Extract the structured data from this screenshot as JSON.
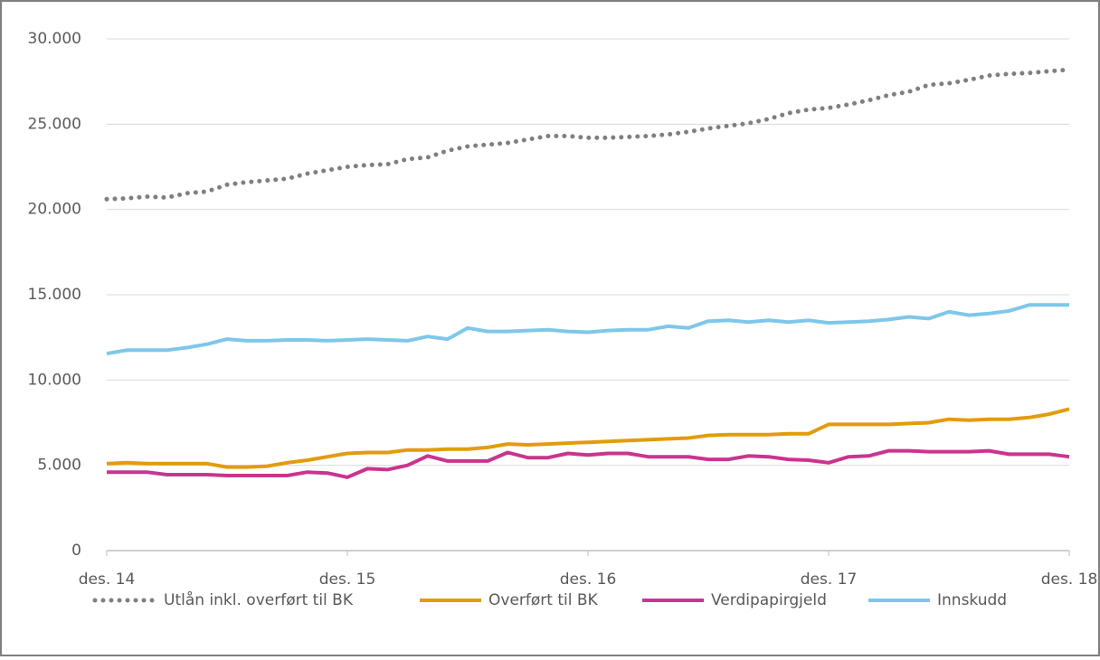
{
  "chart_data": {
    "type": "line",
    "categories": [
      "des. 14",
      null,
      null,
      null,
      null,
      null,
      null,
      null,
      null,
      null,
      null,
      null,
      "des. 15",
      null,
      null,
      null,
      null,
      null,
      null,
      null,
      null,
      null,
      null,
      null,
      "des. 16",
      null,
      null,
      null,
      null,
      null,
      null,
      null,
      null,
      null,
      null,
      null,
      "des. 17",
      null,
      null,
      null,
      null,
      null,
      null,
      null,
      null,
      null,
      null,
      null,
      "des. 18"
    ],
    "ylim": [
      0,
      30000
    ],
    "yticks": [
      0,
      {
        "value": 5000,
        "label": "5.000"
      },
      {
        "value": 10000,
        "label": "10.000"
      },
      {
        "value": 15000,
        "label": "15.000"
      },
      {
        "value": 20000,
        "label": "20.000"
      },
      {
        "value": 25000,
        "label": "25.000"
      },
      {
        "value": 30000,
        "label": "30.000"
      }
    ],
    "grid": true,
    "legend": "bottom",
    "series": [
      {
        "name": "Utlån inkl. overført til BK",
        "color": "#7f7f7f",
        "style": "dotted",
        "values": [
          20600,
          20650,
          20750,
          20700,
          20950,
          21050,
          21450,
          21600,
          21700,
          21800,
          22100,
          22300,
          22500,
          22600,
          22650,
          22950,
          23050,
          23450,
          23700,
          23800,
          23900,
          24100,
          24300,
          24300,
          24200,
          24200,
          24250,
          24300,
          24400,
          24550,
          24750,
          24900,
          25050,
          25300,
          25650,
          25850,
          25950,
          26150,
          26400,
          26700,
          26900,
          27300,
          27400,
          27600,
          27850,
          27950,
          28000,
          28100,
          28200
        ]
      },
      {
        "name": "Overført til BK",
        "color": "#e29c0c",
        "style": "solid",
        "values": [
          5100,
          5150,
          5100,
          5100,
          5100,
          5100,
          4900,
          4900,
          4950,
          5150,
          5300,
          5500,
          5700,
          5750,
          5750,
          5900,
          5900,
          5950,
          5950,
          6050,
          6250,
          6200,
          6250,
          6300,
          6350,
          6400,
          6450,
          6500,
          6550,
          6600,
          6750,
          6800,
          6800,
          6800,
          6850,
          6850,
          7400,
          7400,
          7400,
          7400,
          7450,
          7500,
          7700,
          7650,
          7700,
          7700,
          7800,
          8000,
          8300
        ]
      },
      {
        "name": "Verdipapirgjeld",
        "color": "#c9358e",
        "style": "solid",
        "values": [
          4600,
          4600,
          4600,
          4450,
          4450,
          4450,
          4400,
          4400,
          4400,
          4400,
          4600,
          4550,
          4300,
          4800,
          4750,
          5000,
          5550,
          5250,
          5250,
          5250,
          5750,
          5450,
          5450,
          5700,
          5600,
          5700,
          5700,
          5500,
          5500,
          5500,
          5350,
          5350,
          5550,
          5500,
          5350,
          5300,
          5150,
          5500,
          5550,
          5850,
          5850,
          5800,
          5800,
          5800,
          5850,
          5650,
          5650,
          5650,
          5500
        ]
      },
      {
        "name": "Innskudd",
        "color": "#7ec7ea",
        "style": "solid",
        "values": [
          11550,
          11750,
          11750,
          11750,
          11900,
          12100,
          12400,
          12300,
          12300,
          12350,
          12350,
          12300,
          12350,
          12400,
          12350,
          12300,
          12550,
          12400,
          13050,
          12850,
          12850,
          12900,
          12950,
          12850,
          12800,
          12900,
          12950,
          12950,
          13150,
          13050,
          13450,
          13500,
          13400,
          13500,
          13400,
          13500,
          13350,
          13400,
          13450,
          13550,
          13700,
          13600,
          14000,
          13800,
          13900,
          14050,
          14400,
          14400,
          14400
        ]
      }
    ]
  }
}
